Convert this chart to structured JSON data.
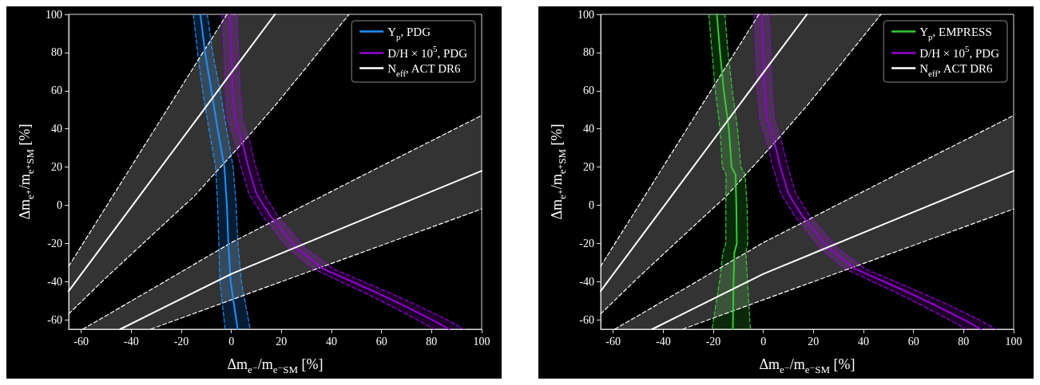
{
  "chart_data": [
    {
      "type": "line",
      "xlabel": "Δm$_{e⁻}$/m$_{e⁻SM}$ [%]",
      "ylabel": "Δm$_{e⁺}$/m$_{e⁺SM}$ [%]",
      "xlim": [
        -65,
        100
      ],
      "ylim": [
        -65,
        100
      ],
      "xticks": [
        -60,
        -40,
        -20,
        0,
        20,
        40,
        60,
        80,
        100
      ],
      "yticks": [
        -60,
        -40,
        -20,
        0,
        20,
        40,
        60,
        80,
        100
      ],
      "legend": "top right",
      "series": [
        {
          "name": "Y$_{p}$, PDG",
          "color": "#1e90ff",
          "line_style": "solid",
          "x": [
            -12.4,
            -10.5,
            -8,
            -5.5,
            -2.8,
            -1.8,
            -1.2,
            -0.3,
            2.5
          ],
          "values": [
            100,
            80,
            60,
            40,
            20,
            0,
            -20,
            -40,
            -65
          ]
        },
        {
          "color": "#1e90ff",
          "line_style": "dashed",
          "x": [
            -15.2,
            -13.5,
            -11.5,
            -9,
            -6.3,
            -5.5,
            -5,
            -4.6,
            -2.5
          ],
          "values": [
            100,
            80,
            60,
            40,
            20,
            0,
            -20,
            -40,
            -65
          ]
        },
        {
          "color": "#1e90ff",
          "line_style": "dashed",
          "x": [
            -9.6,
            -7.5,
            -4.5,
            -2,
            0.7,
            1.9,
            2.6,
            4,
            7.5
          ],
          "values": [
            100,
            80,
            60,
            40,
            20,
            0,
            -20,
            -40,
            -65
          ]
        },
        {
          "name": "D/H × 10$^{5}$, PDG",
          "color": "#9400d3",
          "line_style": "solid",
          "x": [
            -0.7,
            0,
            0.5,
            1.5,
            4,
            6.8,
            10,
            15.2,
            26,
            36.6,
            58,
            68,
            80,
            87
          ],
          "values": [
            100,
            80,
            60,
            45,
            35,
            20,
            6,
            -5,
            -22.4,
            -33.3,
            -45.8,
            -52,
            -59.9,
            -65
          ]
        },
        {
          "color": "#9400d3",
          "line_style": "dashed",
          "x": [
            -3.7,
            -3,
            -2.5,
            -1.5,
            1,
            3.8,
            7,
            12.2,
            22.5,
            32.6,
            53,
            62.5,
            74,
            81
          ],
          "values": [
            100,
            80,
            60,
            45,
            35,
            20,
            6,
            -5,
            -22.4,
            -33.3,
            -45.8,
            -52,
            -59.9,
            -65
          ]
        },
        {
          "color": "#9400d3",
          "line_style": "dashed",
          "x": [
            2.3,
            3,
            3.5,
            4.5,
            7,
            9.8,
            13,
            18.2,
            29.5,
            40.6,
            63,
            73.5,
            86,
            93
          ],
          "values": [
            100,
            80,
            60,
            45,
            35,
            20,
            6,
            -5,
            -22.4,
            -33.3,
            -45.8,
            -52,
            -59.9,
            -65
          ]
        },
        {
          "name": "N$_{eff}$, ACT DR6",
          "color": "#ffffff",
          "line_style": "solid",
          "x": [
            -65,
            -50,
            -35,
            -20,
            -7,
            -1.8,
            5,
            17.4,
            30,
            47
          ],
          "values": [
            -45,
            -18.6,
            7.8,
            34.2,
            57.1,
            66.3,
            78.2,
            100,
            null,
            null
          ],
          "lower": [
            -57,
            -37.9,
            -19.7,
            -1.5,
            16.1,
            23.6,
            33.5,
            52.1,
            72.3,
            100
          ],
          "upper": [
            -32,
            -0.7,
            30.7,
            62,
            89.1,
            100,
            100,
            100,
            100,
            100
          ]
        },
        {
          "color": "#ffffff",
          "line_style": "dashed",
          "x": [
            -65,
            -50,
            -35,
            -20,
            -7,
            -1.8
          ],
          "values": [
            -32,
            -0.7,
            30.7,
            62,
            89.1,
            100
          ]
        },
        {
          "color": "#ffffff",
          "line_style": "dashed",
          "x": [
            -65,
            -50,
            -35,
            -20,
            -15,
            -7,
            -1.8,
            5,
            17.4,
            30,
            47
          ],
          "values": [
            -57,
            -37.9,
            -19.7,
            -1.5,
            4.5,
            16.1,
            23.6,
            33.5,
            52.1,
            72.3,
            100
          ]
        },
        {
          "color": "#ffffff",
          "line_style": "solid",
          "x": [
            -59.4,
            -44.4,
            -32.2,
            0,
            50,
            100
          ],
          "values": [
            null,
            -65,
            -57,
            -36,
            -9,
            18
          ],
          "lower": [
            -65,
            -65,
            -65,
            -49.6,
            -25.8,
            -2
          ],
          "upper": [
            -65,
            -53.6,
            -44.3,
            -19.6,
            13.9,
            47
          ]
        },
        {
          "color": "#ffffff",
          "line_style": "dashed",
          "x": [
            -59.4,
            -44.4,
            -32.2,
            0,
            50,
            100
          ],
          "values": [
            -65,
            -53.6,
            -44.3,
            -19.6,
            13.9,
            47
          ]
        },
        {
          "color": "#ffffff",
          "line_style": "dashed",
          "x": [
            -32.2,
            0,
            50,
            100
          ],
          "values": [
            -65,
            -49.6,
            -25.8,
            -2
          ]
        }
      ],
      "grid": false
    },
    {
      "type": "line",
      "xlabel": "Δm$_{e⁻}$/m$_{e⁻SM}$ [%]",
      "ylabel": "Δm$_{e⁺}$/m$_{e⁺SM}$ [%]",
      "xlim": [
        -65,
        100
      ],
      "ylim": [
        -65,
        100
      ],
      "xticks": [
        -60,
        -40,
        -20,
        0,
        20,
        40,
        60,
        80,
        100
      ],
      "yticks": [
        -60,
        -40,
        -20,
        0,
        20,
        40,
        60,
        80,
        100
      ],
      "legend": "top right",
      "series": [
        {
          "name": "Y$_{p}$, EMPRESS",
          "color": "#32cd32",
          "line_style": "solid",
          "x": [
            -18.6,
            -17.3,
            -15.8,
            -13.8,
            -12.7,
            -11.1,
            -10.8,
            -10.6,
            -11.6,
            -11.9,
            -12.2
          ],
          "values": [
            100,
            80,
            60,
            40,
            20,
            16,
            0,
            -20,
            -25,
            -40,
            -65
          ]
        },
        {
          "color": "#32cd32",
          "line_style": "dashed",
          "x": [
            -21.8,
            -20.5,
            -19.2,
            -17.3,
            -16.4,
            -14.9,
            -15,
            -15,
            -16.2,
            -17.5,
            -20.5
          ],
          "values": [
            100,
            80,
            60,
            40,
            20,
            16,
            0,
            -20,
            -25,
            -40,
            -65
          ]
        },
        {
          "color": "#32cd32",
          "line_style": "dashed",
          "x": [
            -15.4,
            -14.1,
            -12.4,
            -10.3,
            -9,
            -7.3,
            -6.5,
            -6.2,
            -7,
            -6.3,
            -5.2
          ],
          "values": [
            100,
            80,
            60,
            40,
            20,
            16,
            0,
            -20,
            -25,
            -40,
            -65
          ]
        },
        {
          "name": "D/H × 10$^{5}$, PDG",
          "color": "#9400d3",
          "line_style": "solid",
          "x": [
            -0.7,
            0,
            0.5,
            1.5,
            4,
            6.8,
            10,
            15.2,
            26,
            36.6,
            58,
            68,
            80,
            87
          ],
          "values": [
            100,
            80,
            60,
            45,
            35,
            20,
            6,
            -5,
            -22.4,
            -33.3,
            -45.8,
            -52,
            -59.9,
            -65
          ]
        },
        {
          "color": "#9400d3",
          "line_style": "dashed",
          "x": [
            -3.7,
            -3,
            -2.5,
            -1.5,
            1,
            3.8,
            7,
            12.2,
            22.5,
            32.6,
            53,
            62.5,
            74,
            81
          ],
          "values": [
            100,
            80,
            60,
            45,
            35,
            20,
            6,
            -5,
            -22.4,
            -33.3,
            -45.8,
            -52,
            -59.9,
            -65
          ]
        },
        {
          "color": "#9400d3",
          "line_style": "dashed",
          "x": [
            2.3,
            3,
            3.5,
            4.5,
            7,
            9.8,
            13,
            18.2,
            29.5,
            40.6,
            63,
            73.5,
            86,
            93
          ],
          "values": [
            100,
            80,
            60,
            45,
            35,
            20,
            6,
            -5,
            -22.4,
            -33.3,
            -45.8,
            -52,
            -59.9,
            -65
          ]
        },
        {
          "name": "N$_{eff}$, ACT DR6",
          "color": "#ffffff",
          "line_style": "solid",
          "x": [
            -65,
            -50,
            -35,
            -20,
            -7,
            -1.8,
            5,
            17.4,
            30,
            47
          ],
          "values": [
            -45,
            -18.6,
            7.8,
            34.2,
            57.1,
            66.3,
            78.2,
            100,
            null,
            null
          ],
          "lower": [
            -57,
            -37.9,
            -19.7,
            -1.5,
            16.1,
            23.6,
            33.5,
            52.1,
            72.3,
            100
          ],
          "upper": [
            -32,
            -0.7,
            30.7,
            62,
            89.1,
            100,
            100,
            100,
            100,
            100
          ]
        },
        {
          "color": "#ffffff",
          "line_style": "dashed",
          "x": [
            -65,
            -50,
            -35,
            -20,
            -7,
            -1.8
          ],
          "values": [
            -32,
            -0.7,
            30.7,
            62,
            89.1,
            100
          ]
        },
        {
          "color": "#ffffff",
          "line_style": "dashed",
          "x": [
            -65,
            -50,
            -35,
            -20,
            -15,
            -7,
            -1.8,
            5,
            17.4,
            30,
            47
          ],
          "values": [
            -57,
            -37.9,
            -19.7,
            -1.5,
            4.5,
            16.1,
            23.6,
            33.5,
            52.1,
            72.3,
            100
          ]
        },
        {
          "color": "#ffffff",
          "line_style": "solid",
          "x": [
            -59.4,
            -44.4,
            -32.2,
            0,
            50,
            100
          ],
          "values": [
            null,
            -65,
            -57,
            -36,
            -9,
            18
          ],
          "lower": [
            -65,
            -65,
            -65,
            -49.6,
            -25.8,
            -2
          ],
          "upper": [
            -65,
            -53.6,
            -44.3,
            -19.6,
            13.9,
            47
          ]
        },
        {
          "color": "#ffffff",
          "line_style": "dashed",
          "x": [
            -59.4,
            -44.4,
            -32.2,
            0,
            50,
            100
          ],
          "values": [
            -65,
            -53.6,
            -44.3,
            -19.6,
            13.9,
            47
          ]
        },
        {
          "color": "#ffffff",
          "line_style": "dashed",
          "x": [
            -32.2,
            0,
            50,
            100
          ],
          "values": [
            -65,
            -49.6,
            -25.8,
            -2
          ]
        }
      ],
      "grid": false
    }
  ]
}
